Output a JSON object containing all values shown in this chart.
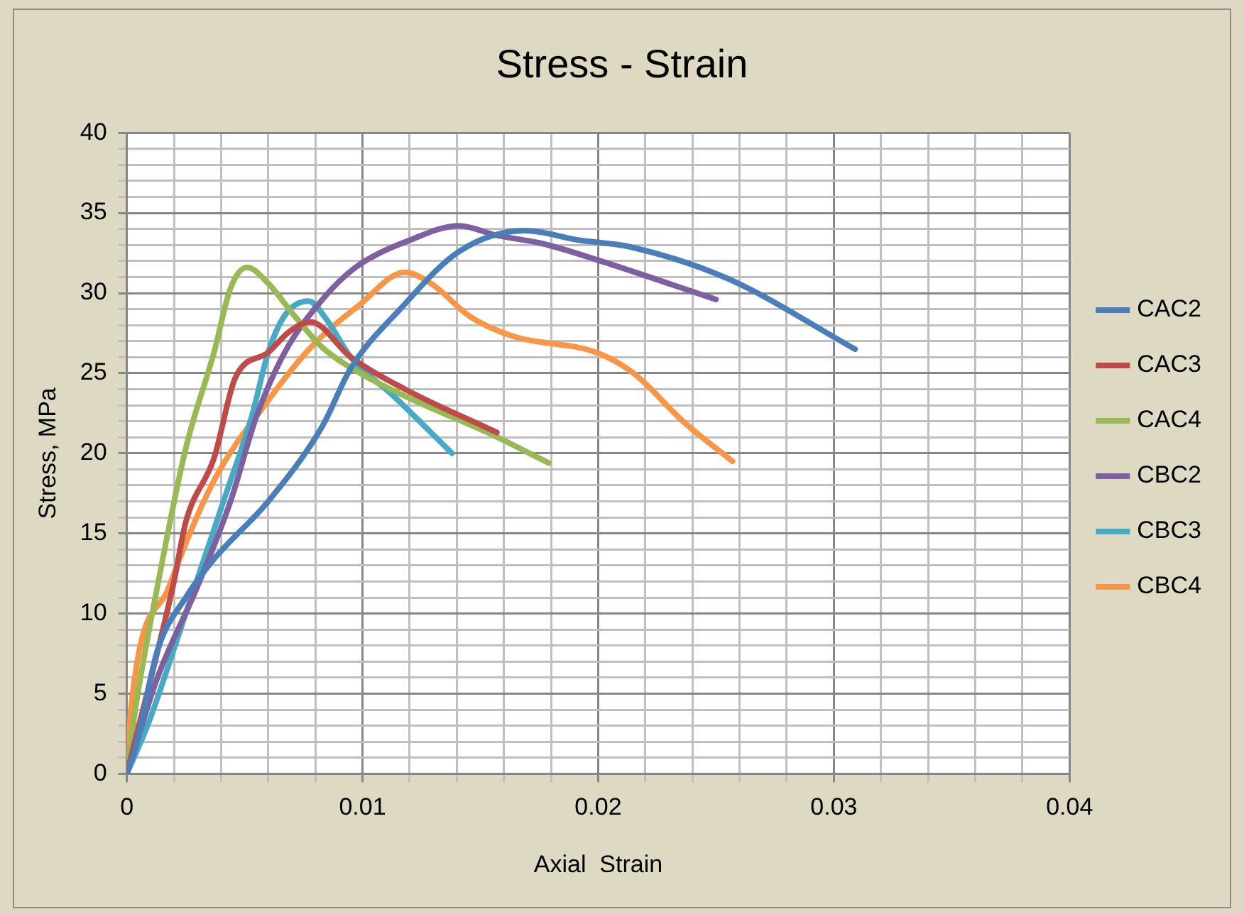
{
  "chart_data": {
    "type": "line",
    "title": "Stress - Strain",
    "xlabel": "Axial  Strain",
    "ylabel": "Stress, MPa",
    "xlim": [
      0,
      0.04
    ],
    "ylim": [
      0,
      40
    ],
    "xticks": [
      0,
      {
        "value": 0.002,
        "label": null
      },
      {
        "value": 0.004,
        "label": null
      },
      {
        "value": 0.006,
        "label": null
      },
      {
        "value": 0.008,
        "label": null
      },
      0.01,
      {
        "value": 0.012,
        "label": null
      },
      {
        "value": 0.014,
        "label": null
      },
      {
        "value": 0.016,
        "label": null
      },
      {
        "value": 0.018,
        "label": null
      },
      0.02,
      {
        "value": 0.022,
        "label": null
      },
      {
        "value": 0.024,
        "label": null
      },
      {
        "value": 0.026,
        "label": null
      },
      {
        "value": 0.028,
        "label": null
      },
      0.03,
      {
        "value": 0.032,
        "label": null
      },
      {
        "value": 0.034,
        "label": null
      },
      {
        "value": 0.036,
        "label": null
      },
      {
        "value": 0.038,
        "label": null
      },
      0.04
    ],
    "yticks": [
      0,
      {
        "value": 1,
        "label": null
      },
      {
        "value": 2,
        "label": null
      },
      {
        "value": 3,
        "label": null
      },
      {
        "value": 4,
        "label": null
      },
      5,
      {
        "value": 6,
        "label": null
      },
      {
        "value": 7,
        "label": null
      },
      {
        "value": 8,
        "label": null
      },
      {
        "value": 9,
        "label": null
      },
      10,
      {
        "value": 11,
        "label": null
      },
      {
        "value": 12,
        "label": null
      },
      {
        "value": 13,
        "label": null
      },
      {
        "value": 14,
        "label": null
      },
      15,
      {
        "value": 16,
        "label": null
      },
      {
        "value": 17,
        "label": null
      },
      {
        "value": 18,
        "label": null
      },
      {
        "value": 19,
        "label": null
      },
      20,
      {
        "value": 21,
        "label": null
      },
      {
        "value": 22,
        "label": null
      },
      {
        "value": 23,
        "label": null
      },
      {
        "value": 24,
        "label": null
      },
      25,
      {
        "value": 26,
        "label": null
      },
      {
        "value": 27,
        "label": null
      },
      {
        "value": 28,
        "label": null
      },
      {
        "value": 29,
        "label": null
      },
      30,
      {
        "value": 31,
        "label": null
      },
      {
        "value": 32,
        "label": null
      },
      {
        "value": 33,
        "label": null
      },
      {
        "value": 34,
        "label": null
      },
      35,
      {
        "value": 36,
        "label": null
      },
      {
        "value": 37,
        "label": null
      },
      {
        "value": 38,
        "label": null
      },
      {
        "value": 39,
        "label": null
      },
      40
    ],
    "grid": true,
    "legend": "right",
    "marker": "none",
    "line_style": "solid",
    "series": [
      {
        "name": "CAC2",
        "color": "#4a7ebb",
        "x": [
          0,
          0.0004,
          0.0013,
          0.0025,
          0.0037,
          0.006,
          0.0083,
          0.0095,
          0.0116,
          0.0141,
          0.0169,
          0.0192,
          0.0213,
          0.0255,
          0.0309
        ],
        "values": [
          0,
          1.8,
          7.7,
          11,
          13.4,
          17,
          21.7,
          25.3,
          29,
          32.6,
          33.9,
          33.3,
          32.9,
          30.9,
          26.5
        ]
      },
      {
        "name": "CAC3",
        "color": "#be4b48",
        "x": [
          0,
          0.002,
          0.0025,
          0.0037,
          0.0046,
          0.006,
          0.0069,
          0.0078,
          0.0095,
          0.0118,
          0.0157
        ],
        "values": [
          0,
          12,
          15.7,
          19.7,
          24.7,
          26.3,
          27.6,
          28.2,
          26,
          24,
          21.3
        ]
      },
      {
        "name": "CAC4",
        "color": "#98b954",
        "x": [
          0,
          0.0004,
          0.0013,
          0.0025,
          0.0037,
          0.0044,
          0.0051,
          0.006,
          0.0071,
          0.0083,
          0.0099,
          0.0122,
          0.0153,
          0.0179
        ],
        "values": [
          0,
          4.4,
          11.7,
          20.3,
          26.3,
          30.3,
          31.6,
          30.6,
          28.6,
          26.6,
          25,
          23.3,
          21.3,
          19.4
        ]
      },
      {
        "name": "CBC2",
        "color": "#7d60a0",
        "x": [
          0,
          0.0013,
          0.003,
          0.0044,
          0.0055,
          0.0067,
          0.0083,
          0.0097,
          0.012,
          0.0141,
          0.0157,
          0.0176,
          0.0199,
          0.025
        ],
        "values": [
          0,
          6,
          11.7,
          17,
          22.3,
          26.3,
          29.6,
          31.6,
          33.3,
          34.2,
          33.6,
          33.1,
          32.1,
          29.6
        ]
      },
      {
        "name": "CBC3",
        "color": "#46aac5",
        "x": [
          0,
          0.0009,
          0.0025,
          0.0041,
          0.0053,
          0.006,
          0.0067,
          0.0077,
          0.0085,
          0.0095,
          0.0113,
          0.0138
        ],
        "values": [
          0,
          3.1,
          10,
          17,
          22.3,
          26.3,
          28.6,
          29.5,
          28.3,
          26,
          23.6,
          20
        ]
      },
      {
        "name": "CBC4",
        "color": "#f79646",
        "x": [
          0,
          0.0002,
          0.0018,
          0.0037,
          0.006,
          0.0078,
          0.0099,
          0.0118,
          0.0129,
          0.0146,
          0.0164,
          0.0199,
          0.0215,
          0.0236,
          0.0257
        ],
        "values": [
          0,
          4.4,
          11.7,
          18.3,
          23.3,
          26.6,
          29.3,
          31.3,
          30.6,
          28.5,
          27.3,
          26.3,
          25,
          22,
          19.5
        ]
      }
    ]
  }
}
